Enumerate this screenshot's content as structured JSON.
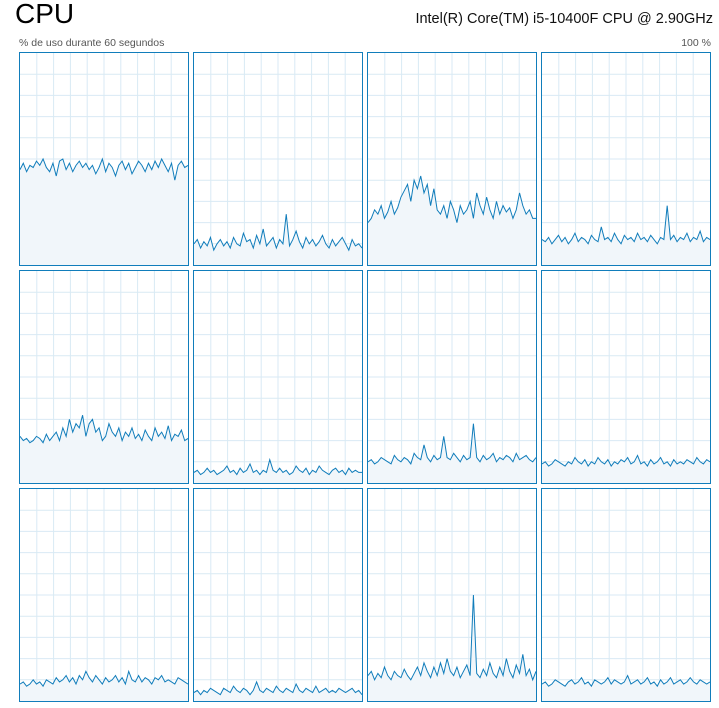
{
  "header": {
    "title": "CPU",
    "cpu_model": "Intel(R) Core(TM) i5-10400F CPU @ 2.90GHz",
    "caption_left": "% de uso durante 60 segundos",
    "caption_right": "100 %"
  },
  "colors": {
    "line": "#117dbb",
    "fill": "#f1f6fa",
    "grid": "#d9eaf4",
    "border": "#117dbb"
  },
  "cores": [
    {
      "name": "core-0",
      "usage": [
        45,
        48,
        44,
        47,
        46,
        49,
        47,
        50,
        46,
        44,
        48,
        42,
        49,
        50,
        45,
        48,
        44,
        47,
        49,
        46,
        48,
        45,
        47,
        43,
        46,
        50,
        44,
        48,
        46,
        42,
        47,
        49,
        45,
        48,
        43,
        46,
        49,
        47,
        44,
        48,
        45,
        49,
        46,
        50,
        47,
        44,
        48,
        40,
        47,
        49,
        46,
        47
      ]
    },
    {
      "name": "core-1",
      "usage": [
        10,
        12,
        8,
        11,
        9,
        13,
        7,
        10,
        12,
        9,
        11,
        8,
        13,
        10,
        9,
        15,
        11,
        12,
        8,
        14,
        10,
        17,
        9,
        11,
        13,
        8,
        12,
        10,
        24,
        9,
        12,
        16,
        11,
        8,
        13,
        10,
        12,
        9,
        11,
        14,
        10,
        8,
        12,
        9,
        11,
        13,
        10,
        7,
        12,
        9,
        10,
        8
      ]
    },
    {
      "name": "core-2",
      "usage": [
        20,
        22,
        26,
        24,
        28,
        22,
        25,
        30,
        24,
        27,
        32,
        35,
        38,
        30,
        40,
        36,
        42,
        34,
        38,
        28,
        36,
        26,
        24,
        28,
        22,
        30,
        26,
        20,
        28,
        24,
        26,
        30,
        22,
        34,
        28,
        24,
        32,
        26,
        22,
        30,
        24,
        28,
        25,
        27,
        22,
        26,
        34,
        28,
        24,
        26,
        22,
        22
      ]
    },
    {
      "name": "core-3",
      "usage": [
        12,
        11,
        13,
        10,
        12,
        14,
        11,
        13,
        10,
        12,
        15,
        11,
        13,
        12,
        10,
        14,
        12,
        11,
        18,
        12,
        13,
        11,
        15,
        12,
        10,
        14,
        12,
        13,
        11,
        15,
        12,
        13,
        11,
        14,
        12,
        10,
        13,
        12,
        28,
        12,
        14,
        11,
        13,
        12,
        15,
        11,
        13,
        12,
        16,
        11,
        13,
        12
      ]
    },
    {
      "name": "core-4",
      "usage": [
        22,
        20,
        21,
        19,
        20,
        22,
        21,
        19,
        23,
        20,
        22,
        24,
        20,
        26,
        22,
        30,
        24,
        28,
        26,
        32,
        22,
        28,
        30,
        24,
        26,
        20,
        22,
        28,
        24,
        22,
        26,
        20,
        24,
        22,
        26,
        21,
        23,
        20,
        25,
        22,
        20,
        26,
        22,
        24,
        21,
        27,
        20,
        23,
        22,
        25,
        20,
        21
      ]
    },
    {
      "name": "core-5",
      "usage": [
        5,
        6,
        4,
        5,
        7,
        5,
        6,
        4,
        5,
        6,
        8,
        5,
        6,
        4,
        7,
        5,
        6,
        9,
        5,
        6,
        4,
        6,
        5,
        11,
        6,
        5,
        7,
        5,
        6,
        4,
        5,
        8,
        6,
        5,
        7,
        4,
        6,
        5,
        8,
        6,
        5,
        4,
        6,
        7,
        5,
        6,
        4,
        7,
        5,
        6,
        5,
        5
      ]
    },
    {
      "name": "core-6",
      "usage": [
        10,
        11,
        9,
        10,
        12,
        11,
        10,
        9,
        13,
        11,
        10,
        12,
        11,
        9,
        14,
        12,
        11,
        18,
        12,
        10,
        13,
        11,
        12,
        22,
        12,
        11,
        14,
        12,
        10,
        13,
        11,
        12,
        28,
        12,
        10,
        13,
        11,
        12,
        14,
        10,
        12,
        11,
        13,
        12,
        10,
        14,
        11,
        12,
        13,
        11,
        10,
        12
      ]
    },
    {
      "name": "core-7",
      "usage": [
        9,
        10,
        8,
        9,
        11,
        10,
        9,
        8,
        10,
        9,
        12,
        10,
        9,
        11,
        8,
        10,
        9,
        12,
        10,
        9,
        11,
        8,
        10,
        9,
        11,
        10,
        12,
        9,
        10,
        13,
        9,
        10,
        8,
        11,
        9,
        10,
        12,
        9,
        10,
        8,
        11,
        9,
        10,
        9,
        11,
        10,
        9,
        12,
        10,
        9,
        11,
        10
      ]
    },
    {
      "name": "core-8",
      "usage": [
        8,
        9,
        7,
        8,
        10,
        8,
        9,
        7,
        10,
        9,
        8,
        11,
        9,
        10,
        12,
        9,
        11,
        8,
        12,
        10,
        14,
        11,
        9,
        12,
        10,
        8,
        11,
        9,
        10,
        12,
        9,
        11,
        8,
        14,
        10,
        9,
        12,
        9,
        11,
        10,
        8,
        11,
        10,
        12,
        9,
        10,
        9,
        8,
        11,
        10,
        9,
        8
      ]
    },
    {
      "name": "core-9",
      "usage": [
        4,
        5,
        3,
        5,
        4,
        6,
        5,
        4,
        3,
        6,
        5,
        4,
        7,
        5,
        4,
        6,
        5,
        3,
        5,
        9,
        5,
        4,
        6,
        5,
        4,
        7,
        5,
        4,
        6,
        5,
        4,
        8,
        5,
        4,
        6,
        5,
        4,
        7,
        4,
        5,
        6,
        4,
        5,
        4,
        6,
        5,
        4,
        5,
        6,
        4,
        5,
        3
      ]
    },
    {
      "name": "core-10",
      "usage": [
        12,
        14,
        10,
        13,
        11,
        16,
        12,
        10,
        14,
        12,
        11,
        15,
        12,
        10,
        13,
        16,
        12,
        18,
        14,
        11,
        16,
        12,
        18,
        13,
        20,
        14,
        12,
        16,
        11,
        14,
        17,
        12,
        50,
        13,
        11,
        15,
        12,
        18,
        13,
        11,
        16,
        12,
        20,
        14,
        11,
        17,
        13,
        22,
        12,
        15,
        10,
        14
      ]
    },
    {
      "name": "core-11",
      "usage": [
        8,
        9,
        7,
        8,
        10,
        9,
        8,
        7,
        9,
        10,
        8,
        9,
        11,
        8,
        9,
        7,
        10,
        9,
        8,
        9,
        11,
        8,
        10,
        9,
        8,
        9,
        12,
        8,
        9,
        10,
        8,
        9,
        11,
        8,
        9,
        7,
        10,
        8,
        9,
        11,
        8,
        9,
        10,
        8,
        9,
        11,
        9,
        8,
        10,
        9,
        8,
        9
      ]
    }
  ]
}
